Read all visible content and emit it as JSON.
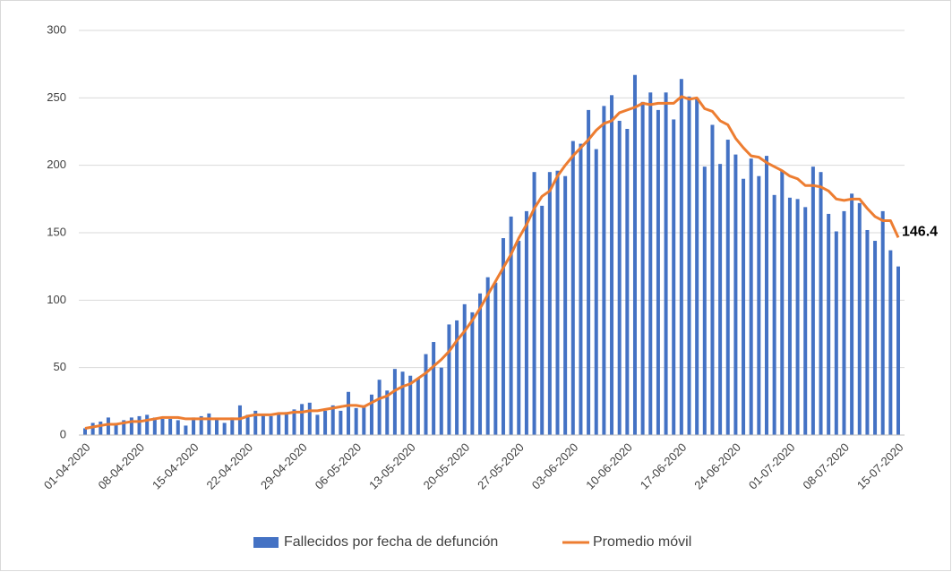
{
  "chart_data": {
    "type": "bar",
    "categories": [
      "01-04-2020",
      null,
      null,
      null,
      null,
      null,
      null,
      "08-04-2020",
      null,
      null,
      null,
      null,
      null,
      null,
      "15-04-2020",
      null,
      null,
      null,
      null,
      null,
      null,
      "22-04-2020",
      null,
      null,
      null,
      null,
      null,
      null,
      "29-04-2020",
      null,
      null,
      null,
      null,
      null,
      null,
      "06-05-2020",
      null,
      null,
      null,
      null,
      null,
      null,
      "13-05-2020",
      null,
      null,
      null,
      null,
      null,
      null,
      "20-05-2020",
      null,
      null,
      null,
      null,
      null,
      null,
      "27-05-2020",
      null,
      null,
      null,
      null,
      null,
      null,
      "03-06-2020",
      null,
      null,
      null,
      null,
      null,
      null,
      "10-06-2020",
      null,
      null,
      null,
      null,
      null,
      null,
      "17-06-2020",
      null,
      null,
      null,
      null,
      null,
      null,
      "24-06-2020",
      null,
      null,
      null,
      null,
      null,
      null,
      "01-07-2020",
      null,
      null,
      null,
      null,
      null,
      null,
      "08-07-2020",
      null,
      null,
      null,
      null,
      null,
      null,
      "15-07-2020"
    ],
    "series": [
      {
        "name": "Fallecidos por fecha de defunción",
        "type": "bar",
        "color": "#4472c4",
        "values": [
          5,
          9,
          10,
          13,
          9,
          11,
          13,
          14,
          15,
          13,
          12,
          12,
          11,
          7,
          13,
          14,
          16,
          12,
          9,
          13,
          22,
          15,
          18,
          15,
          14,
          16,
          17,
          19,
          23,
          24,
          15,
          18,
          22,
          18,
          32,
          20,
          22,
          30,
          41,
          33,
          49,
          47,
          44,
          42,
          60,
          69,
          50,
          82,
          85,
          97,
          91,
          105,
          117,
          113,
          146,
          162,
          144,
          166,
          195,
          170,
          195,
          196,
          192,
          218,
          216,
          241,
          212,
          244,
          252,
          233,
          227,
          267,
          247,
          254,
          241,
          254,
          234,
          264,
          251,
          249,
          199,
          230,
          201,
          219,
          208,
          190,
          205,
          192,
          207,
          178,
          196,
          176,
          175,
          169,
          199,
          195,
          164,
          151,
          166,
          179,
          172,
          152,
          144,
          166,
          137,
          125
        ]
      },
      {
        "name": "Promedio móvil",
        "type": "line",
        "color": "#ed7d31",
        "values": [
          5,
          6,
          7,
          8,
          8,
          9,
          10,
          10,
          11,
          12,
          13,
          13,
          13,
          12,
          12,
          12,
          12,
          12,
          12,
          12,
          12,
          14,
          15,
          15,
          15,
          16,
          16,
          17,
          17,
          18,
          18,
          19,
          20,
          21,
          22,
          22,
          21,
          24,
          27,
          29,
          33,
          36,
          38,
          42,
          46,
          51,
          56,
          62,
          70,
          77,
          85,
          94,
          104,
          114,
          124,
          134,
          146,
          156,
          168,
          177,
          181,
          192,
          200,
          207,
          213,
          219,
          226,
          231,
          233,
          239,
          241,
          243,
          246,
          245,
          246,
          246,
          246,
          251,
          249,
          250,
          242,
          240,
          233,
          230,
          220,
          213,
          207,
          206,
          202,
          199,
          196,
          192,
          190,
          185,
          185,
          184,
          181,
          175,
          174,
          175,
          175,
          168,
          162,
          159,
          159,
          146.4
        ]
      }
    ],
    "ylim": [
      0,
      300
    ],
    "yticks": [
      0,
      50,
      100,
      150,
      200,
      250,
      300
    ],
    "grid": true
  }
}
